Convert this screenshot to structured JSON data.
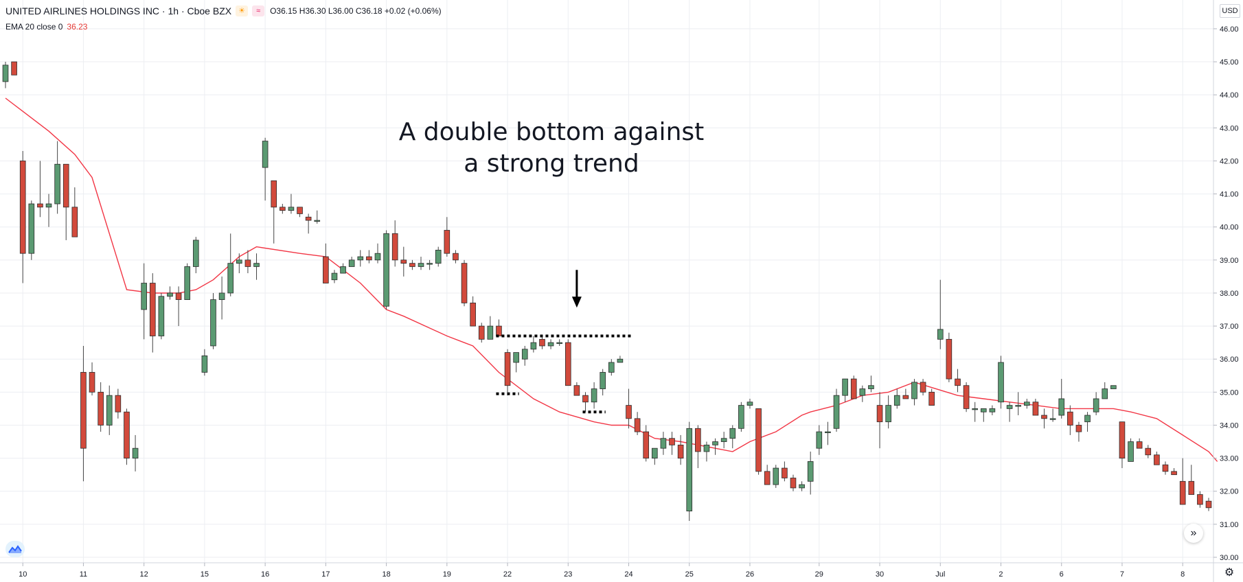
{
  "header": {
    "title": "UNITED AIRLINES HOLDINGS INC · 1h · Cboe BZX",
    "badge_sun": "☀",
    "badge_wave": "≈",
    "ohlc": "O36.15  H36.30  L36.00  C36.18  +0.02 (+0.06%)"
  },
  "indicator": {
    "label": "EMA 20 close 0",
    "value": "36.23"
  },
  "currency_button": "USD",
  "colors": {
    "up": "#5b9a72",
    "down": "#d24a3c",
    "ema": "#f23645",
    "grid": "#eceef2",
    "text": "#131722"
  },
  "annotation": {
    "line1": "A double bottom against",
    "line2": "a strong trend"
  },
  "icons": {
    "logo": "tradingview-logo-icon",
    "scroll": "double-chevron-right-icon",
    "settings": "gear-icon"
  },
  "chart_data": {
    "type": "candlestick",
    "title": "UNITED AIRLINES HOLDINGS INC · 1h · Cboe BZX",
    "ylim": [
      29.8,
      46.2
    ],
    "y_ticks": [
      "30.00",
      "31.00",
      "32.00",
      "33.00",
      "34.00",
      "35.00",
      "36.00",
      "37.00",
      "38.00",
      "39.00",
      "40.00",
      "41.00",
      "42.00",
      "43.00",
      "44.00",
      "45.00",
      "46.00"
    ],
    "x_ticks": [
      "10",
      "11",
      "12",
      "15",
      "16",
      "17",
      "18",
      "19",
      "22",
      "23",
      "24",
      "25",
      "26",
      "29",
      "30",
      "Jul",
      "2",
      "6",
      "7",
      "8"
    ],
    "grid": true,
    "series": [
      {
        "name": "UNITED AIRLINES HOLDINGS INC",
        "kind": "ohlc",
        "candles": [
          [
            44.4,
            45.0,
            44.2,
            44.9
          ],
          [
            45.0,
            45.0,
            44.6,
            44.6
          ],
          [
            42.0,
            42.3,
            38.3,
            39.2
          ],
          [
            39.2,
            40.8,
            39.0,
            40.7
          ],
          [
            40.7,
            42.0,
            40.3,
            40.6
          ],
          [
            40.6,
            41.0,
            40.0,
            40.7
          ],
          [
            40.7,
            42.6,
            40.4,
            41.9
          ],
          [
            41.9,
            41.9,
            39.6,
            40.6
          ],
          [
            40.6,
            41.2,
            39.7,
            39.7
          ],
          [
            35.6,
            36.4,
            32.3,
            33.3
          ],
          [
            35.6,
            35.9,
            34.9,
            35.0
          ],
          [
            35.0,
            35.3,
            33.8,
            34.0
          ],
          [
            34.0,
            35.2,
            33.7,
            34.9
          ],
          [
            34.9,
            35.1,
            34.2,
            34.4
          ],
          [
            34.4,
            34.5,
            32.8,
            33.0
          ],
          [
            33.0,
            33.7,
            32.6,
            33.3
          ],
          [
            37.5,
            38.9,
            36.6,
            38.3
          ],
          [
            38.3,
            38.6,
            36.2,
            36.7
          ],
          [
            36.7,
            38.0,
            36.6,
            37.9
          ],
          [
            37.9,
            38.2,
            37.8,
            38.0
          ],
          [
            38.0,
            38.2,
            37.0,
            37.8
          ],
          [
            37.8,
            38.9,
            37.8,
            38.8
          ],
          [
            38.8,
            39.7,
            38.6,
            39.6
          ],
          [
            35.6,
            36.3,
            35.5,
            36.1
          ],
          [
            36.4,
            38.0,
            36.3,
            37.8
          ],
          [
            37.8,
            38.5,
            37.2,
            38.0
          ],
          [
            38.0,
            39.8,
            37.9,
            38.9
          ],
          [
            38.9,
            39.2,
            38.6,
            39.0
          ],
          [
            39.0,
            39.3,
            38.6,
            38.8
          ],
          [
            38.8,
            39.2,
            38.4,
            38.9
          ],
          [
            41.8,
            42.7,
            40.8,
            42.6
          ],
          [
            41.4,
            41.4,
            39.5,
            40.6
          ],
          [
            40.6,
            40.7,
            40.4,
            40.5
          ],
          [
            40.5,
            41.0,
            40.4,
            40.6
          ],
          [
            40.6,
            40.6,
            40.3,
            40.4
          ],
          [
            40.3,
            40.4,
            39.8,
            40.2
          ],
          [
            40.2,
            40.5,
            40.1,
            40.2
          ],
          [
            39.1,
            39.5,
            38.3,
            38.3
          ],
          [
            38.4,
            38.7,
            38.3,
            38.6
          ],
          [
            38.6,
            38.9,
            38.6,
            38.8
          ],
          [
            38.8,
            39.1,
            38.8,
            39.0
          ],
          [
            39.0,
            39.3,
            38.8,
            39.1
          ],
          [
            39.1,
            39.3,
            38.9,
            39.0
          ],
          [
            39.0,
            39.5,
            38.9,
            39.2
          ],
          [
            37.6,
            39.9,
            37.5,
            39.8
          ],
          [
            39.8,
            40.2,
            38.8,
            39.0
          ],
          [
            39.0,
            39.4,
            38.5,
            38.9
          ],
          [
            38.9,
            39.0,
            38.7,
            38.8
          ],
          [
            38.8,
            39.1,
            38.7,
            38.9
          ],
          [
            38.9,
            39.0,
            38.7,
            38.9
          ],
          [
            38.9,
            39.4,
            38.8,
            39.3
          ],
          [
            39.9,
            40.3,
            39.1,
            39.2
          ],
          [
            39.2,
            39.3,
            38.9,
            39.0
          ],
          [
            38.9,
            39.0,
            37.6,
            37.7
          ],
          [
            37.7,
            37.9,
            37.0,
            37.0
          ],
          [
            37.0,
            37.1,
            36.5,
            36.6
          ],
          [
            36.6,
            37.3,
            36.6,
            37.0
          ],
          [
            37.0,
            37.2,
            36.7,
            36.7
          ],
          [
            36.2,
            36.3,
            34.9,
            35.2
          ],
          [
            35.9,
            36.2,
            35.6,
            36.2
          ],
          [
            36.0,
            36.4,
            35.8,
            36.3
          ],
          [
            36.3,
            36.7,
            36.2,
            36.5
          ],
          [
            36.6,
            36.7,
            36.3,
            36.4
          ],
          [
            36.4,
            36.6,
            36.3,
            36.5
          ],
          [
            36.5,
            36.6,
            36.4,
            36.5
          ],
          [
            36.5,
            36.6,
            35.2,
            35.2
          ],
          [
            35.2,
            35.3,
            34.9,
            34.9
          ],
          [
            34.9,
            35.0,
            34.4,
            34.7
          ],
          [
            34.7,
            35.3,
            34.5,
            35.1
          ],
          [
            35.1,
            35.7,
            34.9,
            35.6
          ],
          [
            35.6,
            36.0,
            35.5,
            35.9
          ],
          [
            35.9,
            36.1,
            35.9,
            36.0
          ],
          [
            34.6,
            35.1,
            33.9,
            34.2
          ],
          [
            34.2,
            34.4,
            33.7,
            33.8
          ],
          [
            33.8,
            34.0,
            32.9,
            33.0
          ],
          [
            33.0,
            33.3,
            32.8,
            33.3
          ],
          [
            33.3,
            33.8,
            33.1,
            33.6
          ],
          [
            33.6,
            33.8,
            33.1,
            33.4
          ],
          [
            33.4,
            33.7,
            32.8,
            33.0
          ],
          [
            31.4,
            34.1,
            31.1,
            33.9
          ],
          [
            33.9,
            34.0,
            32.7,
            33.2
          ],
          [
            33.2,
            33.5,
            32.9,
            33.4
          ],
          [
            33.4,
            33.6,
            33.1,
            33.5
          ],
          [
            33.5,
            33.8,
            33.3,
            33.6
          ],
          [
            33.6,
            34.0,
            33.3,
            33.9
          ],
          [
            33.9,
            34.7,
            33.8,
            34.6
          ],
          [
            34.6,
            34.8,
            34.5,
            34.7
          ],
          [
            34.5,
            34.5,
            32.5,
            32.6
          ],
          [
            32.6,
            32.8,
            32.3,
            32.2
          ],
          [
            32.2,
            32.8,
            32.1,
            32.7
          ],
          [
            32.7,
            32.9,
            32.3,
            32.4
          ],
          [
            32.4,
            32.5,
            32.0,
            32.1
          ],
          [
            32.1,
            32.3,
            32.0,
            32.2
          ],
          [
            32.3,
            33.2,
            31.9,
            32.9
          ],
          [
            33.3,
            34.0,
            33.1,
            33.8
          ],
          [
            33.8,
            34.1,
            33.4,
            33.8
          ],
          [
            33.9,
            35.1,
            33.8,
            34.9
          ],
          [
            34.9,
            35.4,
            34.7,
            35.4
          ],
          [
            35.4,
            35.5,
            34.8,
            34.8
          ],
          [
            34.9,
            35.2,
            34.7,
            35.1
          ],
          [
            35.1,
            35.5,
            35.0,
            35.2
          ],
          [
            34.6,
            35.0,
            33.3,
            34.1
          ],
          [
            34.1,
            34.9,
            33.9,
            34.6
          ],
          [
            34.6,
            35.1,
            34.5,
            34.9
          ],
          [
            34.9,
            35.1,
            34.8,
            34.8
          ],
          [
            34.8,
            35.4,
            34.6,
            35.3
          ],
          [
            35.3,
            35.4,
            34.9,
            35.0
          ],
          [
            35.0,
            35.1,
            34.6,
            34.6
          ],
          [
            36.6,
            38.4,
            36.3,
            36.9
          ],
          [
            36.6,
            36.8,
            35.3,
            35.4
          ],
          [
            35.4,
            35.7,
            35.0,
            35.2
          ],
          [
            35.2,
            35.3,
            34.4,
            34.5
          ],
          [
            34.5,
            34.7,
            34.1,
            34.5
          ],
          [
            34.4,
            34.5,
            34.1,
            34.5
          ],
          [
            34.4,
            34.6,
            34.3,
            34.5
          ],
          [
            34.7,
            36.1,
            34.5,
            35.9
          ],
          [
            34.5,
            34.7,
            34.1,
            34.6
          ],
          [
            34.6,
            35.0,
            34.3,
            34.6
          ],
          [
            34.6,
            34.8,
            34.5,
            34.7
          ],
          [
            34.7,
            34.8,
            34.3,
            34.3
          ],
          [
            34.3,
            34.5,
            33.9,
            34.2
          ],
          [
            34.2,
            34.5,
            34.1,
            34.2
          ],
          [
            34.3,
            35.4,
            34.2,
            34.8
          ],
          [
            34.4,
            34.6,
            33.7,
            34.0
          ],
          [
            34.0,
            34.1,
            33.5,
            33.8
          ],
          [
            34.1,
            34.4,
            33.8,
            34.3
          ],
          [
            34.4,
            35.0,
            34.3,
            34.8
          ],
          [
            34.8,
            35.3,
            34.8,
            35.1
          ],
          [
            35.1,
            35.2,
            35.1,
            35.2
          ],
          [
            34.1,
            34.1,
            32.7,
            33.0
          ],
          [
            32.9,
            33.6,
            32.9,
            33.5
          ],
          [
            33.5,
            33.6,
            33.3,
            33.3
          ],
          [
            33.3,
            33.4,
            33.0,
            33.1
          ],
          [
            33.1,
            33.2,
            32.8,
            32.8
          ],
          [
            32.8,
            32.9,
            32.5,
            32.6
          ],
          [
            32.6,
            32.7,
            32.5,
            32.5
          ],
          [
            32.3,
            33.0,
            31.6,
            31.6
          ],
          [
            32.3,
            32.8,
            31.9,
            31.9
          ],
          [
            31.9,
            32.0,
            31.5,
            31.6
          ],
          [
            31.7,
            31.8,
            31.4,
            31.5
          ]
        ]
      },
      {
        "name": "EMA 20 close 0",
        "kind": "line",
        "x_index": [
          0,
          2,
          5,
          8,
          10,
          14,
          17,
          20,
          22,
          24,
          27,
          29,
          34,
          37,
          41,
          44,
          46,
          51,
          53,
          54,
          57,
          61,
          64,
          68,
          70,
          72,
          75,
          78,
          84,
          86,
          89,
          92,
          93,
          96,
          99,
          102,
          105,
          110,
          113,
          116,
          119,
          122,
          125,
          128,
          130,
          133,
          136,
          139,
          140
        ],
        "values": [
          43.9,
          43.5,
          42.9,
          42.2,
          41.5,
          38.1,
          38.0,
          38.0,
          38.1,
          38.4,
          39.1,
          39.4,
          39.2,
          39.1,
          38.3,
          37.5,
          37.3,
          36.7,
          36.5,
          36.4,
          35.6,
          34.8,
          34.4,
          34.1,
          34.0,
          34.0,
          33.6,
          33.5,
          33.2,
          33.5,
          33.8,
          34.3,
          34.4,
          34.6,
          34.9,
          35.0,
          35.3,
          34.9,
          34.8,
          34.7,
          34.6,
          34.5,
          34.5,
          34.5,
          34.4,
          34.2,
          33.7,
          33.2,
          32.9
        ]
      }
    ],
    "annotations": [
      {
        "kind": "text",
        "text": "A double bottom against a strong trend"
      },
      {
        "kind": "arrow",
        "x_index": 66,
        "from_y": 38.7,
        "to_y": 37.6
      },
      {
        "kind": "dotted-line",
        "x_index": [
          57,
          72
        ],
        "y": 36.7
      },
      {
        "kind": "dotted-line",
        "x_index": [
          57,
          59
        ],
        "y": 34.95
      },
      {
        "kind": "dotted-line",
        "x_index": [
          67,
          69
        ],
        "y": 34.4
      }
    ]
  }
}
